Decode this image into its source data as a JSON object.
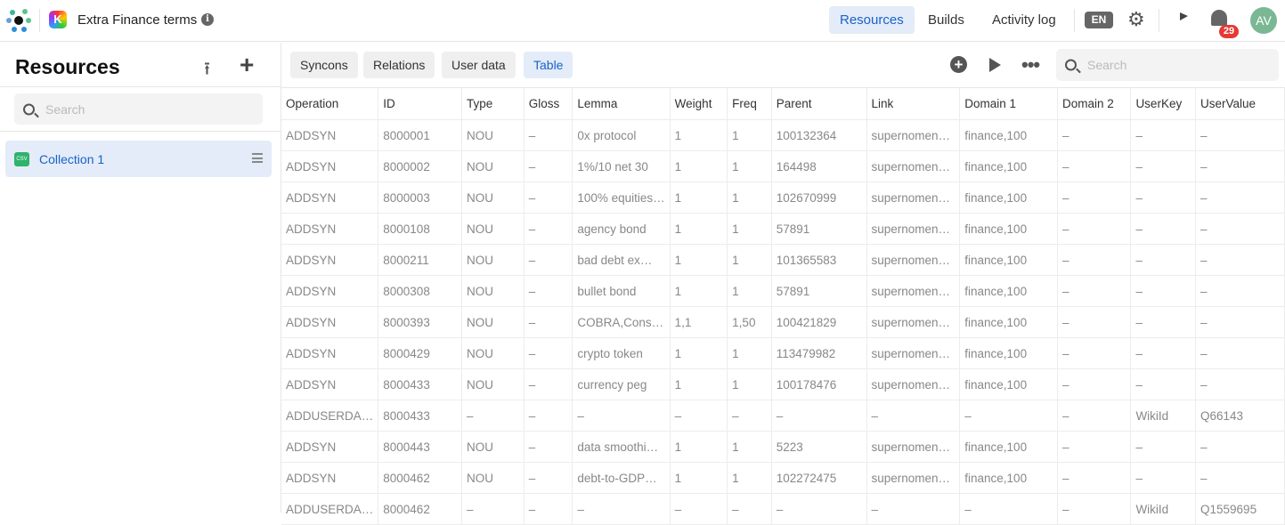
{
  "header": {
    "project_title": "Extra Finance terms",
    "app_icon_letter": "K",
    "nav": [
      "Resources",
      "Builds",
      "Activity log"
    ],
    "active_nav": "Resources",
    "language": "EN",
    "notification_count": "29",
    "avatar_initials": "AV",
    "avatar_color": "#7ab894",
    "accent": "#1a62c9"
  },
  "sidebar": {
    "title": "Resources",
    "search_placeholder": "Search",
    "items": [
      {
        "label": "Collection 1",
        "badge": "CSV"
      }
    ]
  },
  "main": {
    "tabs": [
      "Syncons",
      "Relations",
      "User data",
      "Table"
    ],
    "active_tab": "Table",
    "search_placeholder": "Search",
    "table": {
      "columns": [
        "Operation",
        "ID",
        "Type",
        "Gloss",
        "Lemma",
        "Weight",
        "Freq",
        "Parent",
        "Link",
        "Domain 1",
        "Domain 2",
        "UserKey",
        "UserValue"
      ],
      "rows": [
        [
          "ADDSYN",
          "8000001",
          "NOU",
          "–",
          "0x protocol",
          "1",
          "1",
          "100132364",
          "supernomen…",
          "finance,100",
          "–",
          "–",
          "–"
        ],
        [
          "ADDSYN",
          "8000002",
          "NOU",
          "–",
          "1%/10 net 30",
          "1",
          "1",
          "164498",
          "supernomen…",
          "finance,100",
          "–",
          "–",
          "–"
        ],
        [
          "ADDSYN",
          "8000003",
          "NOU",
          "–",
          "100% equities…",
          "1",
          "1",
          "102670999",
          "supernomen…",
          "finance,100",
          "–",
          "–",
          "–"
        ],
        [
          "ADDSYN",
          "8000108",
          "NOU",
          "–",
          "agency bond",
          "1",
          "1",
          "57891",
          "supernomen…",
          "finance,100",
          "–",
          "–",
          "–"
        ],
        [
          "ADDSYN",
          "8000211",
          "NOU",
          "–",
          "bad debt ex…",
          "1",
          "1",
          "101365583",
          "supernomen…",
          "finance,100",
          "–",
          "–",
          "–"
        ],
        [
          "ADDSYN",
          "8000308",
          "NOU",
          "–",
          "bullet bond",
          "1",
          "1",
          "57891",
          "supernomen…",
          "finance,100",
          "–",
          "–",
          "–"
        ],
        [
          "ADDSYN",
          "8000393",
          "NOU",
          "–",
          "COBRA,Cons…",
          "1,1",
          "1,50",
          "100421829",
          "supernomen…",
          "finance,100",
          "–",
          "–",
          "–"
        ],
        [
          "ADDSYN",
          "8000429",
          "NOU",
          "–",
          "crypto token",
          "1",
          "1",
          "113479982",
          "supernomen…",
          "finance,100",
          "–",
          "–",
          "–"
        ],
        [
          "ADDSYN",
          "8000433",
          "NOU",
          "–",
          "currency peg",
          "1",
          "1",
          "100178476",
          "supernomen…",
          "finance,100",
          "–",
          "–",
          "–"
        ],
        [
          "ADDUSERDA…",
          "8000433",
          "–",
          "–",
          "–",
          "–",
          "–",
          "–",
          "–",
          "–",
          "–",
          "WikiId",
          "Q66143"
        ],
        [
          "ADDSYN",
          "8000443",
          "NOU",
          "–",
          "data smoothi…",
          "1",
          "1",
          "5223",
          "supernomen…",
          "finance,100",
          "–",
          "–",
          "–"
        ],
        [
          "ADDSYN",
          "8000462",
          "NOU",
          "–",
          "debt-to-GDP…",
          "1",
          "1",
          "102272475",
          "supernomen…",
          "finance,100",
          "–",
          "–",
          "–"
        ],
        [
          "ADDUSERDA…",
          "8000462",
          "–",
          "–",
          "–",
          "–",
          "–",
          "–",
          "–",
          "–",
          "–",
          "WikiId",
          "Q1559695"
        ]
      ]
    }
  }
}
